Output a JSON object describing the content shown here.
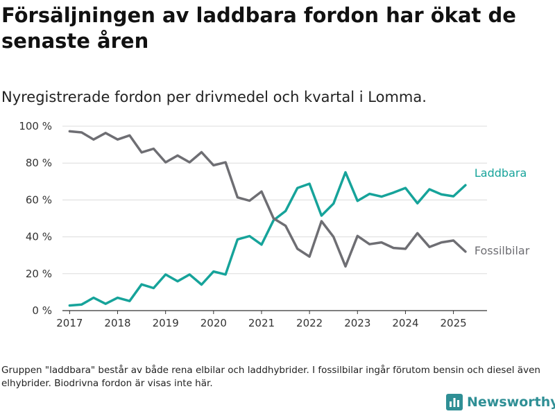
{
  "title": "Försäljningen av laddbara fordon har ökat de senaste åren",
  "subtitle": "Nyregistrerade fordon per drivmedel och kvartal i Lomma.",
  "footnote": "Gruppen \"laddbara\" består av både rena elbilar och laddhybrider. I fossilbilar ingår förutom bensin och diesel även elhybrider. Biodrivna fordon är visas inte här.",
  "brand": {
    "name": "Newsworthy",
    "icon": "newsworthy-logo-icon",
    "color": "#2f8f95"
  },
  "chart_data": {
    "type": "line",
    "title": "",
    "xlabel": "",
    "ylabel": "",
    "ylim": [
      0,
      100
    ],
    "xlim": [
      2016.85,
      2025.7
    ],
    "y_ticks": [
      0,
      20,
      40,
      60,
      80,
      100
    ],
    "y_tick_labels": [
      "0 %",
      "20 %",
      "40 %",
      "60 %",
      "80 %",
      "100 %"
    ],
    "x_ticks": [
      2017,
      2018,
      2019,
      2020,
      2021,
      2022,
      2023,
      2024,
      2025
    ],
    "x_tick_labels": [
      "2017",
      "2018",
      "2019",
      "2020",
      "2021",
      "2022",
      "2023",
      "2024",
      "2025"
    ],
    "grid": "horizontal",
    "legend": "direct labels at line ends",
    "x": [
      2017.0,
      2017.25,
      2017.5,
      2017.75,
      2018.0,
      2018.25,
      2018.5,
      2018.75,
      2019.0,
      2019.25,
      2019.5,
      2019.75,
      2020.0,
      2020.25,
      2020.5,
      2020.75,
      2021.0,
      2021.25,
      2021.5,
      2021.75,
      2022.0,
      2022.25,
      2022.5,
      2022.75,
      2023.0,
      2023.25,
      2023.5,
      2023.75,
      2024.0,
      2024.25,
      2024.5,
      2024.75,
      2025.0,
      2025.25
    ],
    "series": [
      {
        "name": "Laddbara",
        "color": "#16a39a",
        "values": [
          2.8,
          3.3,
          7.0,
          3.7,
          7.0,
          5.2,
          14.2,
          12.2,
          19.6,
          15.9,
          19.6,
          14.1,
          21.2,
          19.6,
          38.6,
          40.4,
          35.8,
          49.0,
          54.0,
          66.5,
          68.8,
          51.5,
          58.0,
          75.0,
          59.5,
          63.3,
          61.8,
          64.0,
          66.5,
          58.2,
          65.8,
          63.0,
          62.0,
          68.0
        ]
      },
      {
        "name": "Fossilbilar",
        "color": "#6e6e73",
        "values": [
          97.2,
          96.6,
          92.8,
          96.3,
          92.8,
          95.0,
          85.8,
          87.8,
          80.4,
          84.1,
          80.4,
          85.9,
          78.8,
          80.4,
          61.4,
          59.6,
          64.6,
          50.0,
          46.0,
          33.5,
          29.3,
          48.5,
          40.0,
          24.0,
          40.5,
          36.0,
          37.0,
          34.0,
          33.5,
          42.0,
          34.5,
          37.0,
          38.0,
          32.0
        ]
      }
    ]
  }
}
